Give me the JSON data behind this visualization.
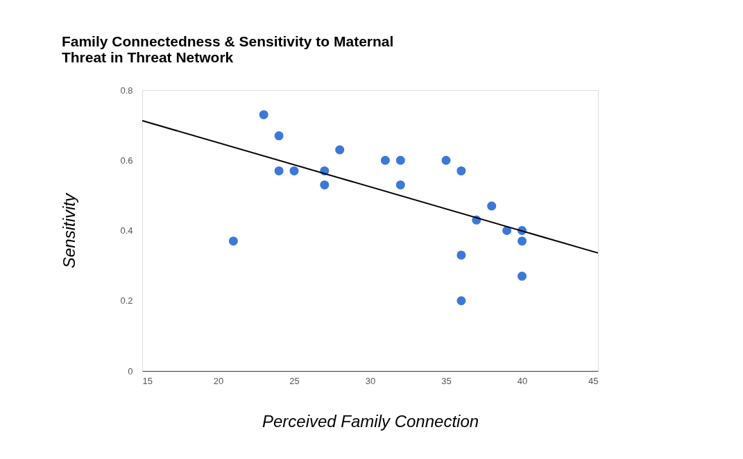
{
  "chart_data": {
    "type": "scatter",
    "title": [
      "Family Connectedness & Sensitivity to Maternal",
      "Threat in Threat Network"
    ],
    "xlabel": "Perceived Family Connection",
    "ylabel": "Sensitivity",
    "xlim": [
      15,
      45
    ],
    "xticks": [
      15,
      20,
      25,
      30,
      35,
      40,
      45
    ],
    "ylim": [
      0,
      0.8
    ],
    "yticks": [
      0,
      0.2,
      0.4,
      0.6,
      0.8
    ],
    "grid": false,
    "series": [
      {
        "marker": "circle",
        "color": "#3c78d8",
        "x": [
          21,
          23,
          24,
          24,
          25,
          27,
          27,
          28,
          31,
          32,
          32,
          35,
          36,
          36,
          36,
          37,
          38,
          39,
          40,
          40,
          40
        ],
        "values": [
          0.37,
          0.73,
          0.67,
          0.57,
          0.57,
          0.57,
          0.53,
          0.63,
          0.6,
          0.6,
          0.53,
          0.6,
          0.57,
          0.33,
          0.2,
          0.43,
          0.47,
          0.4,
          0.4,
          0.37,
          0.27
        ]
      },
      {
        "type": "line",
        "color": "#000000",
        "x": [
          15,
          45
        ],
        "values": [
          0.713,
          0.336
        ],
        "line_style": "solid"
      }
    ]
  }
}
